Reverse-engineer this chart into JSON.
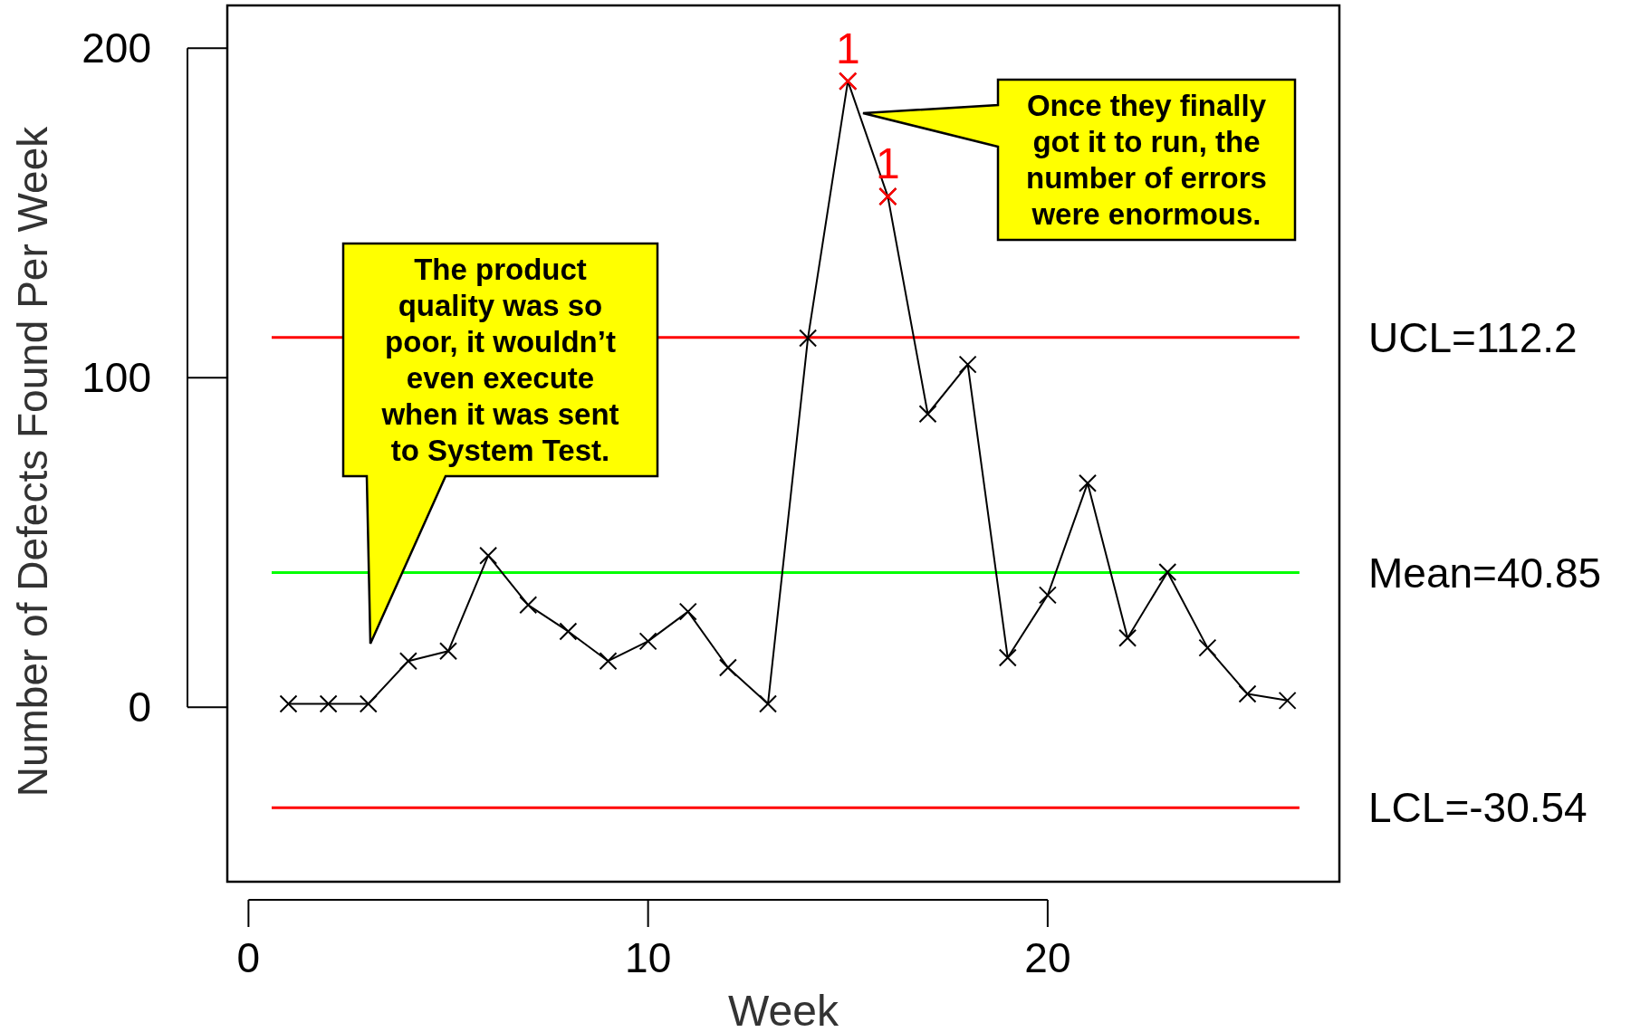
{
  "chart_data": {
    "type": "line",
    "xlabel": "Week",
    "ylabel": "Number of Defects Found Per Week",
    "xlim": [
      -0.53,
      27.3
    ],
    "ylim": [
      -53,
      213
    ],
    "xticks": [
      0,
      10,
      20
    ],
    "yticks": [
      0,
      100,
      200
    ],
    "grid": false,
    "marker": "cross",
    "line_style": "solid",
    "x": [
      1,
      2,
      3,
      4,
      5,
      6,
      7,
      8,
      9,
      10,
      11,
      12,
      13,
      14,
      15,
      16,
      17,
      18,
      19,
      20,
      21,
      22,
      23,
      24,
      25,
      26
    ],
    "series": [
      {
        "color": "#000000",
        "values": [
          1,
          1,
          1,
          14,
          17,
          46,
          31,
          23,
          14,
          20,
          29,
          12,
          1,
          112,
          190,
          155,
          89,
          104,
          15,
          34,
          68,
          21,
          41,
          18,
          4,
          2
        ]
      },
      {
        "type": "scatter",
        "color": "#ff0000",
        "x": [
          15,
          16
        ],
        "values": [
          190,
          155
        ]
      }
    ],
    "ref_lines": [
      {
        "axis": "y",
        "value": 112.2,
        "label": "UCL=112.2",
        "color": "#ff0000"
      },
      {
        "axis": "y",
        "value": 40.85,
        "label": "Mean=40.85",
        "color": "#00ff00"
      },
      {
        "axis": "y",
        "value": -30.54,
        "label": "LCL=-30.54",
        "color": "#ff0000"
      }
    ],
    "annotations": [
      "The product\nquality was so\npoor, it wouldn’t\neven execute\nwhen it was sent\nto System Test.",
      "Once they finally\ngot it to run, the\nnumber of errors\nwere enormous.",
      {
        "text": "1",
        "x": 15,
        "y": 190
      },
      {
        "text": "1",
        "x": 16,
        "y": 155
      }
    ]
  }
}
